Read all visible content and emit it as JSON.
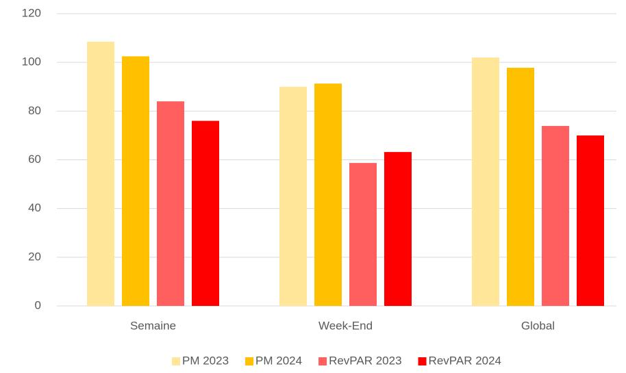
{
  "chart_data": {
    "type": "bar",
    "categories": [
      "Semaine",
      "Week-End",
      "Global"
    ],
    "series": [
      {
        "name": "PM 2023",
        "color": "#FFE699",
        "values": [
          108.5,
          90,
          102
        ]
      },
      {
        "name": "PM 2024",
        "color": "#FFC000",
        "values": [
          102.5,
          91.3,
          97.8
        ]
      },
      {
        "name": "RevPAR 2023",
        "color": "#FF5F5F",
        "values": [
          84,
          58.7,
          73.9
        ]
      },
      {
        "name": "RevPAR 2024",
        "color": "#FF0000",
        "values": [
          76,
          63.2,
          70
        ]
      }
    ],
    "ylim": [
      0,
      120
    ],
    "yticks": [
      0,
      20,
      40,
      60,
      80,
      100,
      120
    ],
    "grid": true,
    "legend": "bottom"
  }
}
